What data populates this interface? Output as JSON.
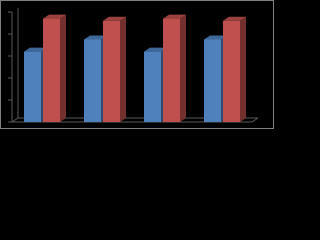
{
  "chart_data": {
    "type": "bar3d",
    "categories": [
      null,
      null,
      null,
      null
    ],
    "series": [
      {
        "color": "#4f81bd",
        "values": [
          3.2,
          3.75,
          3.2,
          3.75
        ]
      },
      {
        "color": "#c0504d",
        "values": [
          4.7,
          4.6,
          4.7,
          4.6
        ]
      }
    ],
    "ylim": [
      0,
      5
    ],
    "yticks": [
      0,
      1,
      2,
      3,
      4,
      5
    ],
    "grid": false
  }
}
